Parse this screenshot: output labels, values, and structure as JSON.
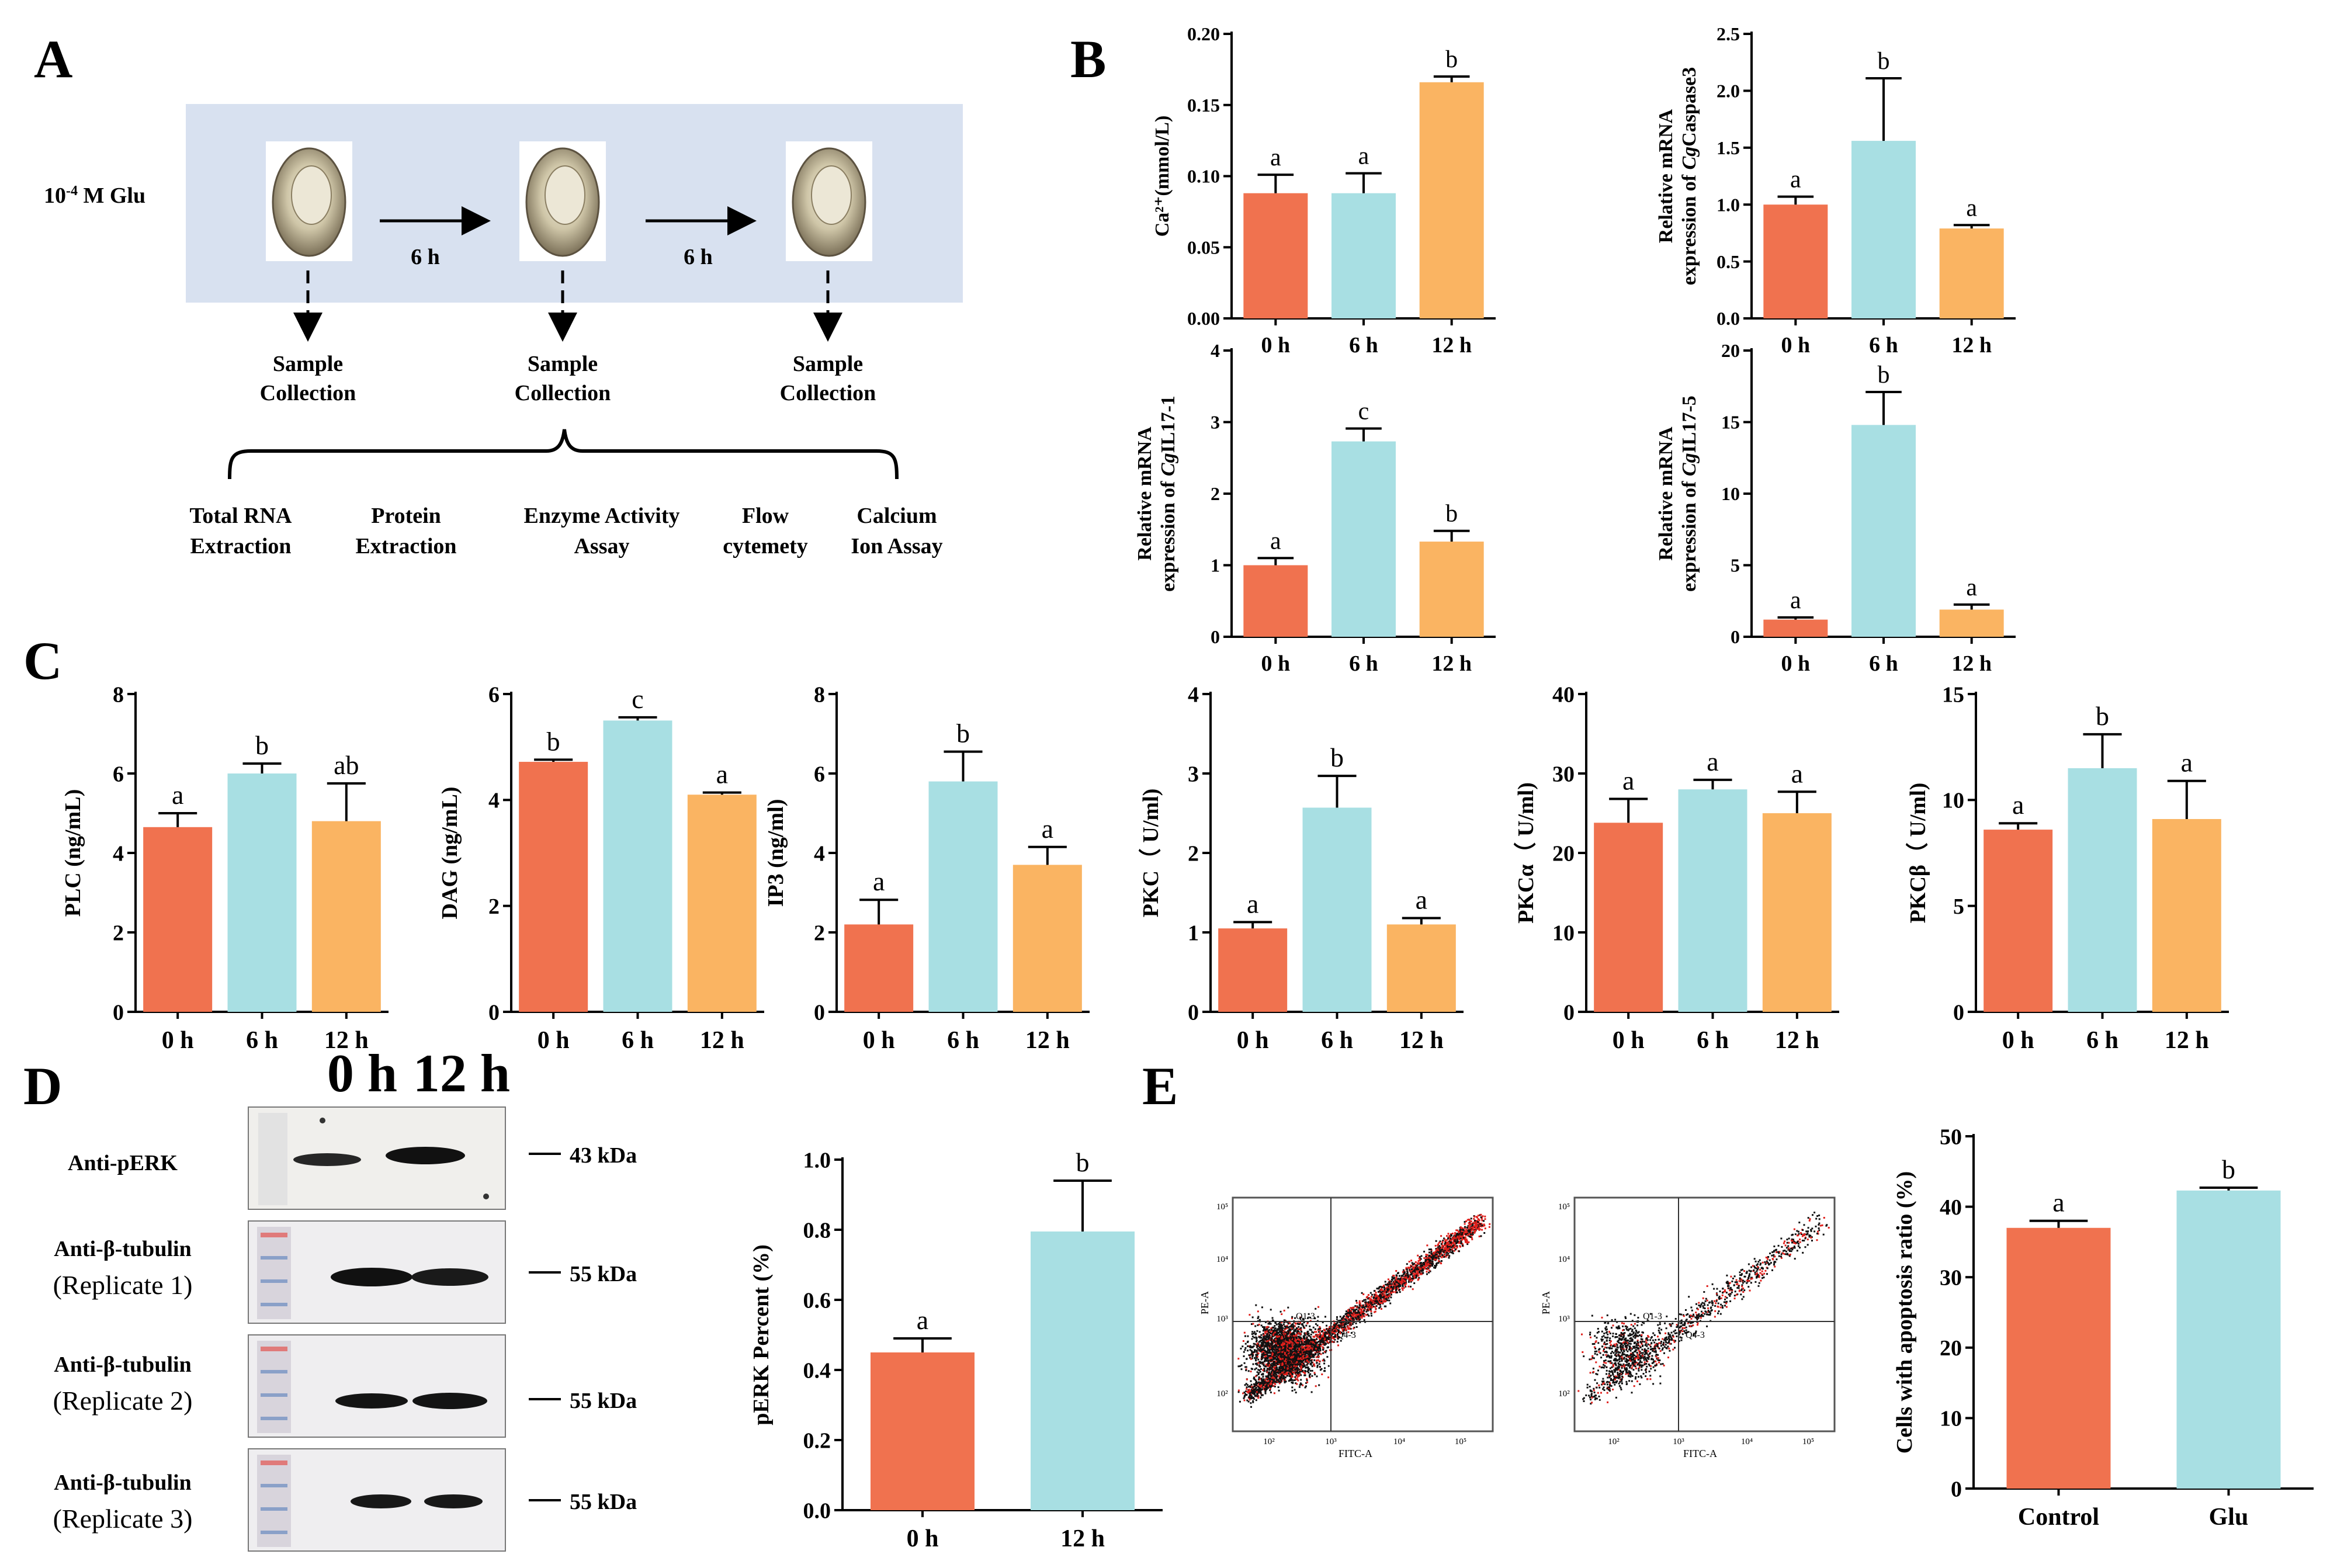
{
  "colors": {
    "h0": "#F0724F",
    "h6": "#A8DFE3",
    "h12": "#FAB462",
    "bg_box": "#D8E1F0"
  },
  "panels": {
    "A": "A",
    "B": "B",
    "C": "C",
    "D": "D",
    "E": "E"
  },
  "diagram": {
    "treatment": "10",
    "treatment_exp": "-4",
    "treatment_suffix": " M Glu",
    "interval_1": "6 h",
    "interval_2": "6 h",
    "collection_line1": "Sample",
    "collection_line2": "Collection",
    "assays": [
      {
        "line1": "Total RNA",
        "line2": "Extraction"
      },
      {
        "line1": "Protein",
        "line2": "Extraction"
      },
      {
        "line1": "Enzyme Activity",
        "line2": "Assay"
      },
      {
        "line1": "Flow",
        "line2": "cytemety"
      },
      {
        "line1": "Calcium",
        "line2": "Ion Assay"
      }
    ]
  },
  "blot": {
    "lanes": [
      "0 h",
      "12 h"
    ],
    "rows": [
      {
        "label1": "Anti-pERK",
        "label2": "",
        "size": "43 kDa"
      },
      {
        "label1": "Anti-β-tubulin",
        "label2": "(Replicate 1)",
        "size": "55 kDa"
      },
      {
        "label1": "Anti-β-tubulin",
        "label2": "(Replicate 2)",
        "size": "55 kDa"
      },
      {
        "label1": "Anti-β-tubulin",
        "label2": "(Replicate 3)",
        "size": "55 kDa"
      }
    ]
  },
  "flow": {
    "plots": [
      {
        "xlabel": "FITC-A",
        "ylabel": "PE-A",
        "q1": "Q1-3",
        "q4": "Q4-3",
        "xticks": [
          "10²",
          "10³",
          "10⁴",
          "10⁵"
        ],
        "yticks": [
          "10²",
          "10³",
          "10⁴",
          "10⁵"
        ]
      },
      {
        "xlabel": "FITC-A",
        "ylabel": "PE-A",
        "q1": "Q1-3",
        "q4": "Q4-3",
        "xticks": [
          "10²",
          "10³",
          "10⁴",
          "10⁵"
        ],
        "yticks": [
          "10²",
          "10³",
          "10⁴",
          "10⁵"
        ]
      }
    ]
  },
  "chart_data": [
    {
      "id": "ca",
      "type": "bar",
      "ylabel": "Ca²⁺(mmol/L)",
      "categories": [
        "0 h",
        "6 h",
        "12 h"
      ],
      "values": [
        0.088,
        0.088,
        0.166
      ],
      "errors": [
        0.013,
        0.014,
        0.004
      ],
      "letters": [
        "a",
        "a",
        "b"
      ],
      "ylim": [
        0,
        0.2
      ],
      "yticks": [
        "0.00",
        "0.05",
        "0.10",
        "0.15",
        "0.20"
      ]
    },
    {
      "id": "casp",
      "type": "bar",
      "ylabel": "Relative mRNA",
      "ylabel2": "expression of CgCaspase3",
      "categories": [
        "0 h",
        "6 h",
        "12 h"
      ],
      "values": [
        1.0,
        1.56,
        0.79
      ],
      "errors": [
        0.07,
        0.55,
        0.03
      ],
      "letters": [
        "a",
        "b",
        "a"
      ],
      "ylim": [
        0,
        2.5
      ],
      "yticks": [
        "0.0",
        "0.5",
        "1.0",
        "1.5",
        "2.0",
        "2.5"
      ]
    },
    {
      "id": "il171",
      "type": "bar",
      "ylabel": "Relative mRNA",
      "ylabel2": "expression of CgIL17-1",
      "categories": [
        "0 h",
        "6 h",
        "12 h"
      ],
      "values": [
        1.0,
        2.73,
        1.33
      ],
      "errors": [
        0.1,
        0.18,
        0.15
      ],
      "letters": [
        "a",
        "c",
        "b"
      ],
      "ylim": [
        0,
        4
      ],
      "yticks": [
        "0",
        "1",
        "2",
        "3",
        "4"
      ]
    },
    {
      "id": "il175",
      "type": "bar",
      "ylabel": "Relative mRNA",
      "ylabel2": "expression of CgIL17-5",
      "categories": [
        "0 h",
        "6 h",
        "12 h"
      ],
      "values": [
        1.2,
        14.8,
        1.9
      ],
      "errors": [
        0.15,
        2.3,
        0.35
      ],
      "letters": [
        "a",
        "b",
        "a"
      ],
      "ylim": [
        0,
        20
      ],
      "yticks": [
        "0",
        "5",
        "10",
        "15",
        "20"
      ]
    },
    {
      "id": "plc",
      "type": "bar",
      "ylabel": "PLC (ng/mL)",
      "categories": [
        "0 h",
        "6 h",
        "12 h"
      ],
      "values": [
        4.65,
        6.0,
        4.8
      ],
      "errors": [
        0.35,
        0.25,
        0.95
      ],
      "letters": [
        "a",
        "b",
        "ab"
      ],
      "ylim": [
        0,
        8
      ],
      "yticks": [
        "0",
        "2",
        "4",
        "6",
        "8"
      ]
    },
    {
      "id": "dag",
      "type": "bar",
      "ylabel": "DAG (ng/mL)",
      "categories": [
        "0 h",
        "6 h",
        "12 h"
      ],
      "values": [
        4.72,
        5.5,
        4.1
      ],
      "errors": [
        0.04,
        0.06,
        0.04
      ],
      "letters": [
        "b",
        "c",
        "a"
      ],
      "ylim": [
        0,
        6
      ],
      "yticks": [
        "0",
        "2",
        "4",
        "6"
      ]
    },
    {
      "id": "ip3",
      "type": "bar",
      "ylabel": "IP3 (ng/ml)",
      "categories": [
        "0 h",
        "6 h",
        "12 h"
      ],
      "values": [
        2.2,
        5.8,
        3.7
      ],
      "errors": [
        0.62,
        0.75,
        0.45
      ],
      "letters": [
        "a",
        "b",
        "a"
      ],
      "ylim": [
        0,
        8
      ],
      "yticks": [
        "0",
        "2",
        "4",
        "6",
        "8"
      ]
    },
    {
      "id": "pkc",
      "type": "bar",
      "ylabel": "PKC（ U/ml)",
      "categories": [
        "0 h",
        "6 h",
        "12 h"
      ],
      "values": [
        1.05,
        2.57,
        1.1
      ],
      "errors": [
        0.08,
        0.4,
        0.08
      ],
      "letters": [
        "a",
        "b",
        "a"
      ],
      "ylim": [
        0,
        4
      ],
      "yticks": [
        "0",
        "1",
        "2",
        "3",
        "4"
      ]
    },
    {
      "id": "pkca",
      "type": "bar",
      "ylabel": "PKCα（ U/ml)",
      "categories": [
        "0 h",
        "6 h",
        "12 h"
      ],
      "values": [
        23.8,
        28.0,
        25.0
      ],
      "errors": [
        3.0,
        1.2,
        2.7
      ],
      "letters": [
        "a",
        "a",
        "a"
      ],
      "ylim": [
        0,
        40
      ],
      "yticks": [
        "0",
        "10",
        "20",
        "30",
        "40"
      ]
    },
    {
      "id": "pkcb",
      "type": "bar",
      "ylabel": "PKCβ（ U/ml)",
      "categories": [
        "0 h",
        "6 h",
        "12 h"
      ],
      "values": [
        8.6,
        11.5,
        9.1
      ],
      "errors": [
        0.3,
        1.6,
        1.8
      ],
      "letters": [
        "a",
        "b",
        "a"
      ],
      "ylim": [
        0,
        15
      ],
      "yticks": [
        "0",
        "5",
        "10",
        "15"
      ]
    },
    {
      "id": "perk",
      "type": "bar",
      "ylabel": "pERK Percent (%)",
      "categories": [
        "0 h",
        "12 h"
      ],
      "values": [
        0.45,
        0.795
      ],
      "errors": [
        0.04,
        0.145
      ],
      "letters": [
        "a",
        "b"
      ],
      "ylim": [
        0,
        1.0
      ],
      "yticks": [
        "0.0",
        "0.2",
        "0.4",
        "0.6",
        "0.8",
        "1.0"
      ]
    },
    {
      "id": "apop",
      "type": "bar",
      "ylabel": "Cells with apoptosis ratio (%)",
      "categories": [
        "Control",
        "Glu"
      ],
      "values": [
        37.0,
        42.3
      ],
      "errors": [
        1.0,
        0.4
      ],
      "letters": [
        "a",
        "b"
      ],
      "ylim": [
        0,
        50
      ],
      "yticks": [
        "0",
        "10",
        "20",
        "30",
        "40",
        "50"
      ]
    }
  ]
}
